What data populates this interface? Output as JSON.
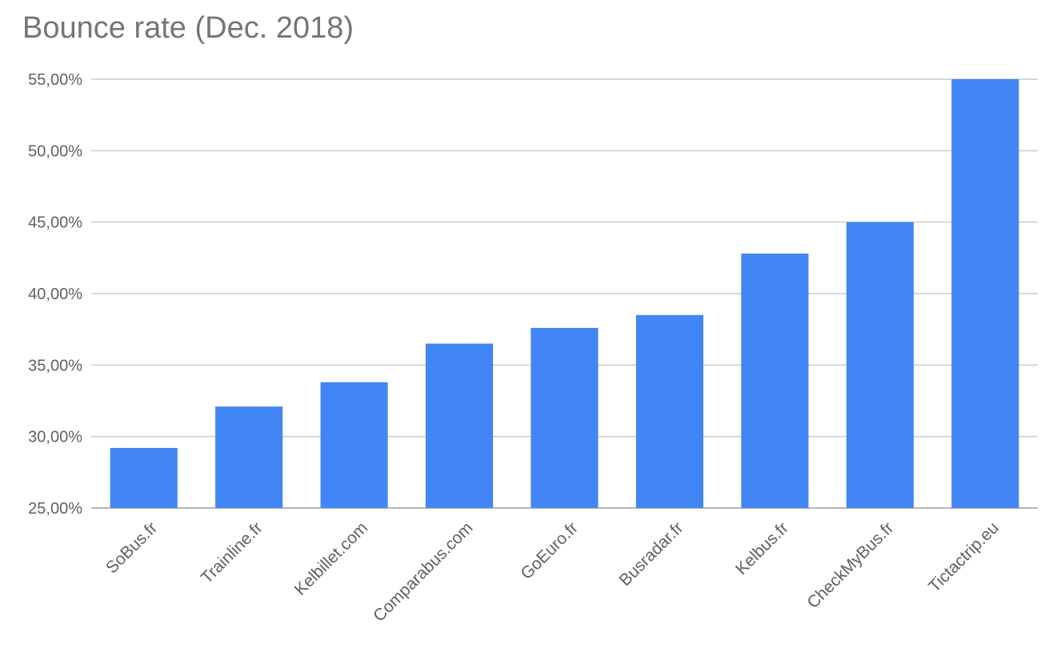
{
  "chart_data": {
    "type": "bar",
    "title": "Bounce rate (Dec. 2018)",
    "xlabel": "",
    "ylabel": "",
    "categories": [
      "SoBus.fr",
      "Trainline.fr",
      "Kelbillet.com",
      "Comparabus.com",
      "GoEuro.fr",
      "Busradar.fr",
      "Kelbus.fr",
      "CheckMyBus.fr",
      "Tictactrip.eu"
    ],
    "values": [
      29.2,
      32.1,
      33.8,
      36.5,
      37.6,
      38.5,
      42.8,
      45.0,
      55.0
    ],
    "ylim": [
      25,
      55
    ],
    "yticks": [
      25,
      30,
      35,
      40,
      45,
      50,
      55
    ],
    "ytick_labels": [
      "25,00%",
      "30,00%",
      "35,00%",
      "40,00%",
      "45,00%",
      "50,00%",
      "55,00%"
    ],
    "grid": true,
    "legend": "none",
    "bar_color": "#4285f4"
  }
}
